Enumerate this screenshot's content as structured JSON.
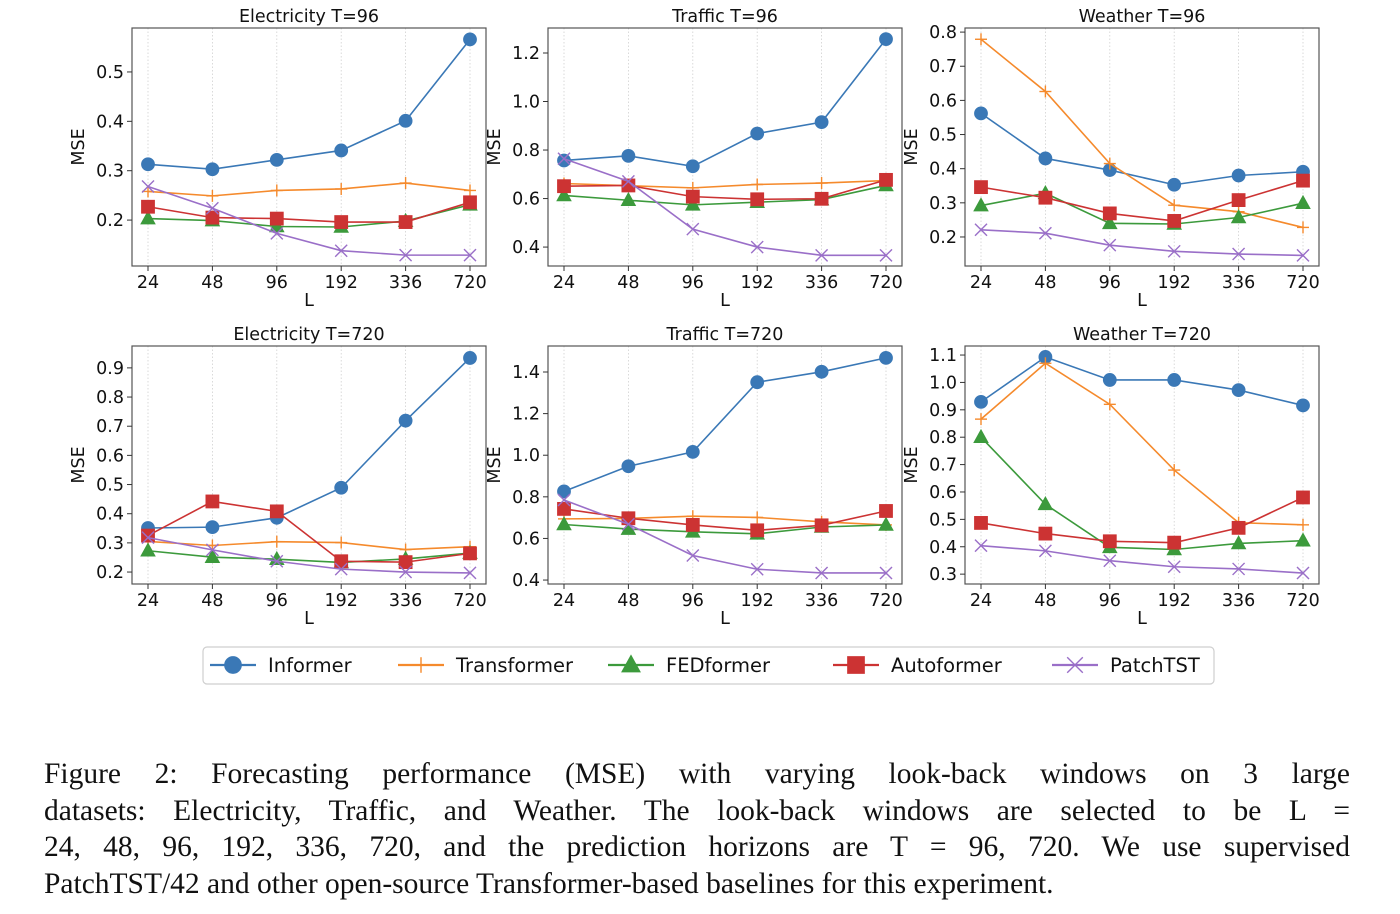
{
  "chart_data": [
    {
      "type": "line",
      "title": "Electricity T=96",
      "xlabel": "L",
      "ylabel": "MSE",
      "categories": [
        "24",
        "48",
        "96",
        "192",
        "336",
        "720"
      ],
      "ylim": [
        0.107,
        0.589
      ],
      "yticks": [
        0.2,
        0.3,
        0.4,
        0.5
      ],
      "ytick_labels": [
        "0.2",
        "0.3",
        "0.4",
        "0.5"
      ],
      "grid": "vertical-dotted",
      "series": [
        {
          "name": "Informer",
          "values": [
            0.313,
            0.303,
            0.322,
            0.341,
            0.401,
            0.566
          ]
        },
        {
          "name": "Transformer",
          "values": [
            0.258,
            0.249,
            0.26,
            0.263,
            0.275,
            0.26
          ]
        },
        {
          "name": "FEDformer",
          "values": [
            0.203,
            0.199,
            0.187,
            0.186,
            0.198,
            0.231
          ]
        },
        {
          "name": "Autoformer",
          "values": [
            0.227,
            0.205,
            0.203,
            0.196,
            0.196,
            0.236
          ]
        },
        {
          "name": "PatchTST",
          "values": [
            0.268,
            0.224,
            0.173,
            0.138,
            0.129,
            0.129
          ]
        }
      ]
    },
    {
      "type": "line",
      "title": "Traffic T=96",
      "xlabel": "L",
      "ylabel": "MSE",
      "categories": [
        "24",
        "48",
        "96",
        "192",
        "336",
        "720"
      ],
      "ylim": [
        0.322,
        1.303
      ],
      "yticks": [
        0.4,
        0.6,
        0.8,
        1.0,
        1.2
      ],
      "ytick_labels": [
        "0.4",
        "0.6",
        "0.8",
        "1.0",
        "1.2"
      ],
      "grid": "vertical-dotted",
      "series": [
        {
          "name": "Informer",
          "values": [
            0.757,
            0.776,
            0.733,
            0.868,
            0.915,
            1.257
          ]
        },
        {
          "name": "Transformer",
          "values": [
            0.662,
            0.653,
            0.644,
            0.658,
            0.664,
            0.674
          ]
        },
        {
          "name": "FEDformer",
          "values": [
            0.613,
            0.593,
            0.574,
            0.585,
            0.596,
            0.654
          ]
        },
        {
          "name": "Autoformer",
          "values": [
            0.651,
            0.654,
            0.608,
            0.597,
            0.599,
            0.677
          ]
        },
        {
          "name": "PatchTST",
          "values": [
            0.764,
            0.671,
            0.474,
            0.4,
            0.366,
            0.366
          ]
        }
      ]
    },
    {
      "type": "line",
      "title": "Weather T=96",
      "xlabel": "L",
      "ylabel": "MSE",
      "categories": [
        "24",
        "48",
        "96",
        "192",
        "336",
        "720"
      ],
      "ylim": [
        0.115,
        0.812
      ],
      "yticks": [
        0.2,
        0.3,
        0.4,
        0.5,
        0.6,
        0.7,
        0.8
      ],
      "ytick_labels": [
        "0.2",
        "0.3",
        "0.4",
        "0.5",
        "0.6",
        "0.7",
        "0.8"
      ],
      "grid": "vertical-dotted",
      "series": [
        {
          "name": "Informer",
          "values": [
            0.562,
            0.43,
            0.396,
            0.353,
            0.38,
            0.391
          ]
        },
        {
          "name": "Transformer",
          "values": [
            0.779,
            0.626,
            0.415,
            0.293,
            0.274,
            0.228
          ]
        },
        {
          "name": "FEDformer",
          "values": [
            0.292,
            0.328,
            0.24,
            0.238,
            0.257,
            0.299
          ]
        },
        {
          "name": "Autoformer",
          "values": [
            0.346,
            0.315,
            0.269,
            0.247,
            0.308,
            0.365
          ]
        },
        {
          "name": "PatchTST",
          "values": [
            0.221,
            0.211,
            0.176,
            0.158,
            0.15,
            0.146
          ]
        }
      ]
    },
    {
      "type": "line",
      "title": "Electricity T=720",
      "xlabel": "L",
      "ylabel": "MSE",
      "categories": [
        "24",
        "48",
        "96",
        "192",
        "336",
        "720"
      ],
      "ylim": [
        0.159,
        0.975
      ],
      "yticks": [
        0.2,
        0.3,
        0.4,
        0.5,
        0.6,
        0.7,
        0.8,
        0.9
      ],
      "ytick_labels": [
        "0.2",
        "0.3",
        "0.4",
        "0.5",
        "0.6",
        "0.7",
        "0.8",
        "0.9"
      ],
      "grid": "vertical-dotted",
      "series": [
        {
          "name": "Informer",
          "values": [
            0.351,
            0.354,
            0.386,
            0.489,
            0.719,
            0.934
          ]
        },
        {
          "name": "Transformer",
          "values": [
            0.305,
            0.291,
            0.304,
            0.301,
            0.277,
            0.287
          ]
        },
        {
          "name": "FEDformer",
          "values": [
            0.273,
            0.251,
            0.244,
            0.233,
            0.245,
            0.265
          ]
        },
        {
          "name": "Autoformer",
          "values": [
            0.325,
            0.442,
            0.408,
            0.237,
            0.234,
            0.264
          ]
        },
        {
          "name": "PatchTST",
          "values": [
            0.318,
            0.276,
            0.237,
            0.21,
            0.2,
            0.197
          ]
        }
      ]
    },
    {
      "type": "line",
      "title": "Traffic T=720",
      "xlabel": "L",
      "ylabel": "MSE",
      "categories": [
        "24",
        "48",
        "96",
        "192",
        "336",
        "720"
      ],
      "ylim": [
        0.381,
        1.525
      ],
      "yticks": [
        0.4,
        0.6,
        0.8,
        1.0,
        1.2,
        1.4
      ],
      "ytick_labels": [
        "0.4",
        "0.6",
        "0.8",
        "1.0",
        "1.2",
        "1.4"
      ],
      "grid": "vertical-dotted",
      "series": [
        {
          "name": "Informer",
          "values": [
            0.826,
            0.947,
            1.016,
            1.351,
            1.401,
            1.468
          ]
        },
        {
          "name": "Transformer",
          "values": [
            0.694,
            0.696,
            0.707,
            0.701,
            0.68,
            0.665
          ]
        },
        {
          "name": "FEDformer",
          "values": [
            0.667,
            0.645,
            0.632,
            0.622,
            0.655,
            0.665
          ]
        },
        {
          "name": "Autoformer",
          "values": [
            0.742,
            0.697,
            0.665,
            0.639,
            0.663,
            0.732
          ]
        },
        {
          "name": "PatchTST",
          "values": [
            0.785,
            0.668,
            0.518,
            0.452,
            0.434,
            0.434
          ]
        }
      ]
    },
    {
      "type": "line",
      "title": "Weather T=720",
      "xlabel": "L",
      "ylabel": "MSE",
      "categories": [
        "24",
        "48",
        "96",
        "192",
        "336",
        "720"
      ],
      "ylim": [
        0.264,
        1.133
      ],
      "yticks": [
        0.3,
        0.4,
        0.5,
        0.6,
        0.7,
        0.8,
        0.9,
        1.0,
        1.1
      ],
      "ytick_labels": [
        "0.3",
        "0.4",
        "0.5",
        "0.6",
        "0.7",
        "0.8",
        "0.9",
        "1.0",
        "1.1"
      ],
      "grid": "vertical-dotted",
      "series": [
        {
          "name": "Informer",
          "values": [
            0.929,
            1.093,
            1.009,
            1.009,
            0.972,
            0.916
          ]
        },
        {
          "name": "Transformer",
          "values": [
            0.866,
            1.07,
            0.92,
            0.68,
            0.488,
            0.48
          ]
        },
        {
          "name": "FEDformer",
          "values": [
            0.8,
            0.555,
            0.398,
            0.39,
            0.412,
            0.422
          ]
        },
        {
          "name": "Autoformer",
          "values": [
            0.487,
            0.448,
            0.42,
            0.415,
            0.469,
            0.58
          ]
        },
        {
          "name": "PatchTST",
          "values": [
            0.404,
            0.385,
            0.349,
            0.327,
            0.319,
            0.304
          ]
        }
      ]
    }
  ],
  "legend": {
    "placement": "bottom-center",
    "items": [
      {
        "name": "Informer",
        "color": "#3a78b6",
        "marker": "circle"
      },
      {
        "name": "Transformer",
        "color": "#f58a2c",
        "marker": "plus"
      },
      {
        "name": "FEDformer",
        "color": "#3c9a3c",
        "marker": "triangle"
      },
      {
        "name": "Autoformer",
        "color": "#cc3333",
        "marker": "square"
      },
      {
        "name": "PatchTST",
        "color": "#9a6fc8",
        "marker": "x"
      }
    ]
  },
  "caption": {
    "lines": [
      "Figure 2:  Forecasting performance (MSE) with varying look-back windows on 3 large",
      "datasets: Electricity, Traffic, and Weather.  The look-back windows are selected to be L =",
      "24, 48, 96, 192, 336, 720,  and the prediction horizons are T  =  96, 720.   We use supervised",
      "PatchTST/42 and other open-source Transformer-based baselines for this experiment."
    ]
  }
}
